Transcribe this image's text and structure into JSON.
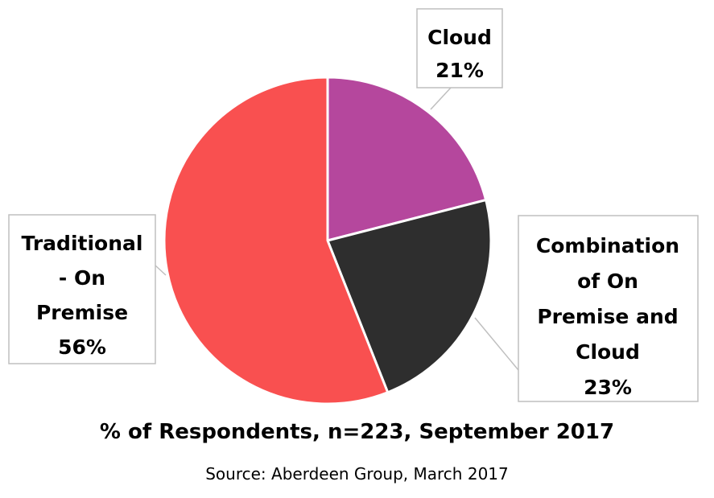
{
  "chart_data": {
    "type": "pie",
    "title": "",
    "slices": [
      {
        "label": "Cloud",
        "value": 21,
        "display": "21%",
        "color": "#b5479d"
      },
      {
        "label": "Combination of On Premise and Cloud",
        "value": 23,
        "display": "23%",
        "color": "#2e2e2e"
      },
      {
        "label": "Traditional - On Premise",
        "value": 56,
        "display": "56%",
        "color": "#f95050"
      }
    ],
    "callouts": [
      {
        "lines": [
          "Cloud",
          "21%"
        ]
      },
      {
        "lines": [
          "Combination",
          "of On",
          "Premise and",
          "Cloud",
          "23%"
        ]
      },
      {
        "lines": [
          "Traditional",
          "- On",
          "Premise",
          "56%"
        ]
      }
    ],
    "subtitle": "% of Respondents, n=223, September 2017",
    "source": "Source: Aberdeen Group, March 2017"
  }
}
